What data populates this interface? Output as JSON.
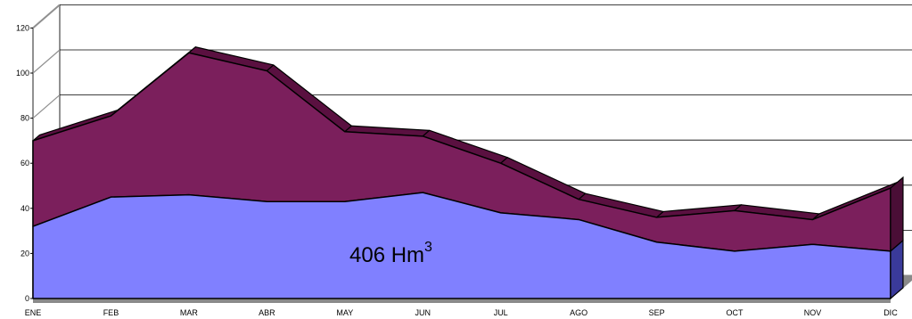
{
  "chart_data": {
    "type": "area",
    "stacked": true,
    "style": "3d",
    "categories": [
      "ENE",
      "FEB",
      "MAR",
      "ABR",
      "MAY",
      "JUN",
      "JUL",
      "AGO",
      "SEP",
      "OCT",
      "NOV",
      "DIC"
    ],
    "series": [
      {
        "values": [
          32,
          45,
          46,
          43,
          43,
          47,
          38,
          35,
          25,
          21,
          24,
          21
        ]
      },
      {
        "values": [
          38,
          36,
          63,
          58,
          31,
          25,
          22,
          9,
          11,
          18,
          11,
          28
        ]
      }
    ],
    "colors": {
      "bottom_series": "#8080ff",
      "top_series": "#7b1f5c",
      "top_series_depth": "#5a1040",
      "floor": "#8a8a8a",
      "gridline": "#000000"
    },
    "ylim": [
      0,
      120
    ],
    "yticks": [
      "0",
      "20",
      "40",
      "60",
      "80",
      "100",
      "120"
    ],
    "grid": true,
    "annotation": {
      "value": "406 Hm",
      "superscript": "3"
    },
    "title": "",
    "xlabel": "",
    "ylabel": ""
  }
}
